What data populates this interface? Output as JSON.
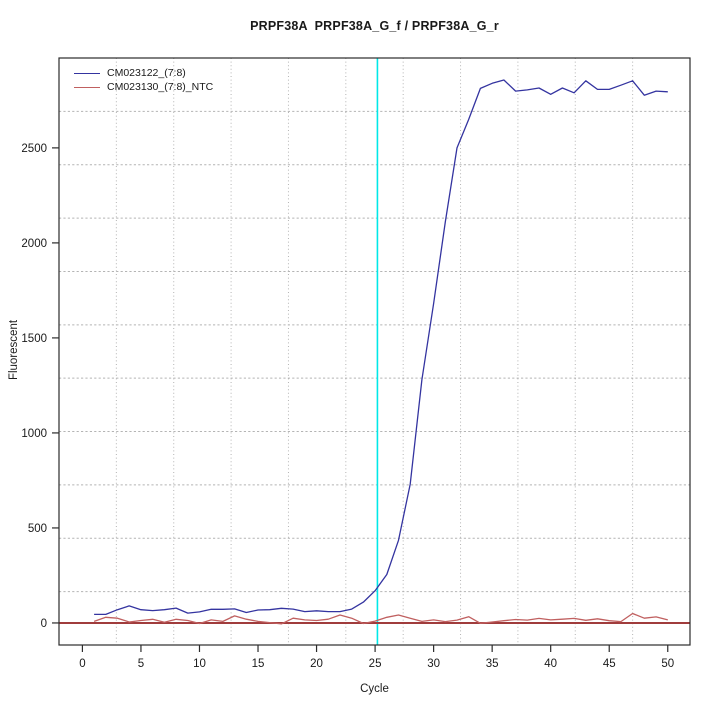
{
  "title": "PRPF38A  PRPF38A_G_f / PRPF38A_G_r",
  "chart_data": {
    "type": "line",
    "title": "PRPF38A  PRPF38A_G_f / PRPF38A_G_r",
    "xlabel": "Cycle",
    "ylabel": "Fluorescent",
    "xlim": [
      -2,
      51.9
    ],
    "ylim": [
      -116,
      2973
    ],
    "x_ticks": [
      0,
      5,
      10,
      15,
      20,
      25,
      30,
      35,
      40,
      45,
      50
    ],
    "y_ticks": [
      0,
      500,
      1000,
      1500,
      2000,
      2500
    ],
    "grid": {
      "on": true,
      "divisions": 11,
      "style": "dotted",
      "color": "#b4b4b4"
    },
    "threshold_line": {
      "axis": "x",
      "value": 25.2,
      "color": "#00e8e8"
    },
    "zero_line": {
      "axis": "y",
      "value": 0,
      "color": "#a03c3c"
    },
    "legend_position": "top-left",
    "x": [
      1,
      2,
      3,
      4,
      5,
      6,
      7,
      8,
      9,
      10,
      11,
      12,
      13,
      14,
      15,
      16,
      17,
      18,
      19,
      20,
      21,
      22,
      23,
      24,
      25,
      26,
      27,
      28,
      29,
      30,
      31,
      32,
      33,
      34,
      35,
      36,
      37,
      38,
      39,
      40,
      41,
      42,
      43,
      44,
      45,
      46,
      47,
      48,
      49,
      50
    ],
    "series": [
      {
        "name": "CM023122_(7:8)",
        "color": "#3434a0",
        "values": [
          45,
          45,
          70,
          90,
          70,
          65,
          70,
          78,
          52,
          58,
          72,
          72,
          74,
          55,
          68,
          70,
          77,
          73,
          60,
          64,
          60,
          60,
          73,
          110,
          170,
          255,
          435,
          730,
          1280,
          1680,
          2110,
          2500,
          2650,
          2813,
          2840,
          2857,
          2799,
          2805,
          2815,
          2782,
          2815,
          2790,
          2853,
          2808,
          2808,
          2830,
          2853,
          2777,
          2799,
          2795
        ]
      },
      {
        "name": "CM023130_(7:8)_NTC",
        "color": "#c06060",
        "values": [
          8,
          30,
          25,
          5,
          13,
          19,
          4,
          19,
          13,
          -3,
          16,
          8,
          37,
          20,
          8,
          2,
          -5,
          25,
          16,
          13,
          20,
          42,
          25,
          -3,
          10,
          30,
          42,
          25,
          8,
          16,
          7,
          15,
          33,
          -2,
          5,
          12,
          18,
          15,
          24,
          16,
          20,
          24,
          14,
          22,
          12,
          7,
          50,
          25,
          32,
          16
        ]
      }
    ],
    "axis_color": "#2b2b2b",
    "text_color": "#1a1a1a"
  }
}
